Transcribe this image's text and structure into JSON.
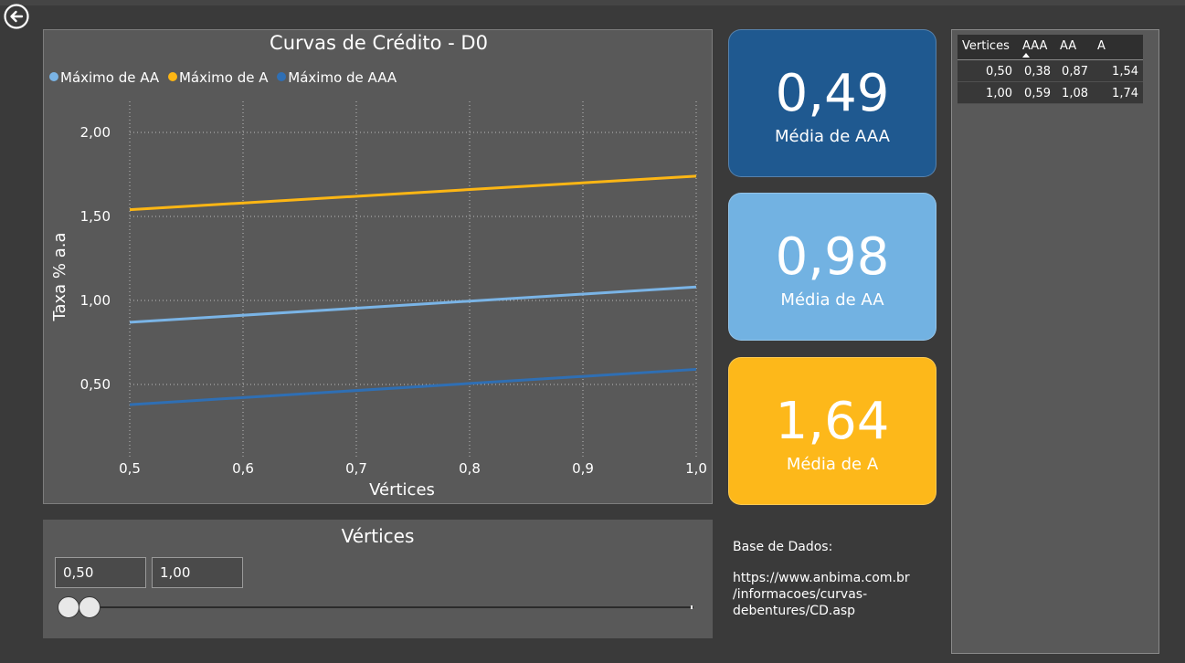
{
  "app": {
    "back_icon": "arrow-left-circle-icon"
  },
  "chart": {
    "title": "Curvas de Crédito - D0",
    "legend": [
      {
        "label": "Máximo de AA",
        "color": "#7ab4e6"
      },
      {
        "label": "Máximo de A",
        "color": "#fdb614"
      },
      {
        "label": "Máximo de AAA",
        "color": "#2f6fb4"
      }
    ]
  },
  "chart_data": {
    "type": "line",
    "title": "Curvas de Crédito - D0",
    "xlabel": "Vértices",
    "ylabel": "Taxa % a.a",
    "x": [
      0.5,
      1.0
    ],
    "xlim": [
      0.5,
      1.0
    ],
    "ylim": [
      0.0,
      2.25
    ],
    "xticks": [
      "0,5",
      "0,6",
      "0,7",
      "0,8",
      "0,9",
      "1,0"
    ],
    "yticks": [
      "0,50",
      "1,00",
      "1,50",
      "2,00"
    ],
    "grid": true,
    "legend_position": "top-left",
    "series": [
      {
        "name": "Máximo de AA",
        "color": "#7ab4e6",
        "values": [
          0.87,
          1.08
        ]
      },
      {
        "name": "Máximo de A",
        "color": "#fdb614",
        "values": [
          1.54,
          1.74
        ]
      },
      {
        "name": "Máximo de AAA",
        "color": "#2f6fb4",
        "values": [
          0.38,
          0.59
        ]
      }
    ]
  },
  "slicer": {
    "title": "Vértices",
    "min_value": "0,50",
    "max_value": "1,00",
    "range_fraction": [
      0.0,
      1.0
    ]
  },
  "kpis": [
    {
      "value": "0,49",
      "label": "Média de AAA",
      "color": "#1f5990"
    },
    {
      "value": "0,98",
      "label": "Média de AA",
      "color": "#72b2e2"
    },
    {
      "value": "1,64",
      "label": "Média de A",
      "color": "#fdb81a"
    }
  ],
  "info": {
    "heading": "Base de Dados:",
    "url_lines": [
      "https://www.anbima.com.br",
      "/informacoes/curvas-",
      "debentures/CD.asp"
    ]
  },
  "table": {
    "columns": [
      "Vertices",
      "AAA",
      "AA",
      "A"
    ],
    "sorted_column": "AAA",
    "rows": [
      [
        "0,50",
        "0,38",
        "0,87",
        "1,54"
      ],
      [
        "1,00",
        "0,59",
        "1,08",
        "1,74"
      ]
    ]
  }
}
